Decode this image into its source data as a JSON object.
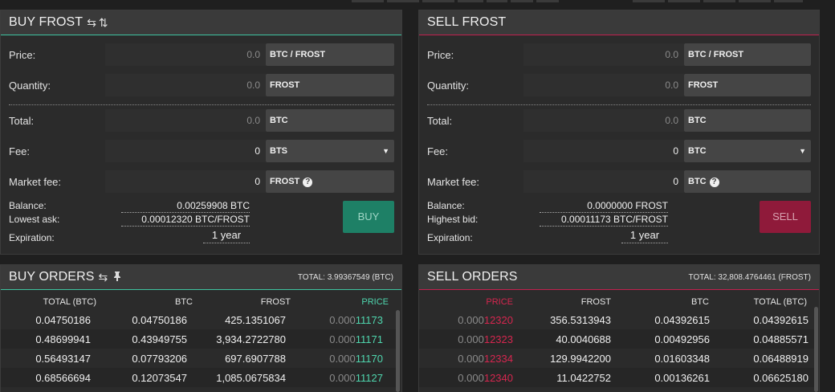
{
  "buy_panel": {
    "title": "BUY FROST",
    "swap_icon": "swap-arrows-icon",
    "sort_icon": "up-down-arrows-icon",
    "price_label": "Price:",
    "price_value": "0.0",
    "price_unit": "BTC / FROST",
    "quantity_label": "Quantity:",
    "quantity_value": "0.0",
    "quantity_unit": "FROST",
    "total_label": "Total:",
    "total_value": "0.0",
    "total_unit": "BTC",
    "fee_label": "Fee:",
    "fee_value": "0",
    "fee_asset": "BTS",
    "market_fee_label": "Market fee:",
    "market_fee_value": "0",
    "market_fee_asset": "FROST",
    "balance_label": "Balance:",
    "balance_value": "0.00259908 BTC",
    "lowest_ask_label": "Lowest ask:",
    "lowest_ask_value": "0.00012320 BTC/FROST",
    "expiration_label": "Expiration:",
    "expiration_value": "1 year",
    "button_label": "BUY"
  },
  "sell_panel": {
    "title": "SELL FROST",
    "price_label": "Price:",
    "price_value": "0.0",
    "price_unit": "BTC / FROST",
    "quantity_label": "Quantity:",
    "quantity_value": "0.0",
    "quantity_unit": "FROST",
    "total_label": "Total:",
    "total_value": "0.0",
    "total_unit": "BTC",
    "fee_label": "Fee:",
    "fee_value": "0",
    "fee_asset": "BTC",
    "market_fee_label": "Market fee:",
    "market_fee_value": "0",
    "market_fee_asset": "BTC",
    "balance_label": "Balance:",
    "balance_value": "0.0000000 FROST",
    "highest_bid_label": "Highest bid:",
    "highest_bid_value": "0.00011173 BTC/FROST",
    "expiration_label": "Expiration:",
    "expiration_value": "1 year",
    "button_label": "SELL"
  },
  "buy_orders": {
    "title": "BUY ORDERS",
    "swap_icon": "swap-arrows-icon",
    "pin_icon": "pin-icon",
    "total": "TOTAL: 3.99367549 (BTC)",
    "columns": [
      "TOTAL (BTC)",
      "BTC",
      "FROST",
      "PRICE"
    ],
    "rows": [
      {
        "total": "0.04750186",
        "btc": "0.04750186",
        "frost": "425.1351067",
        "price_prefix": "0.000",
        "price_digits": "11173"
      },
      {
        "total": "0.48699941",
        "btc": "0.43949755",
        "frost": "3,934.2722780",
        "price_prefix": "0.000",
        "price_digits": "11171"
      },
      {
        "total": "0.56493147",
        "btc": "0.07793206",
        "frost": "697.6907788",
        "price_prefix": "0.000",
        "price_digits": "11170"
      },
      {
        "total": "0.68566694",
        "btc": "0.12073547",
        "frost": "1,085.0675834",
        "price_prefix": "0.000",
        "price_digits": "11127"
      }
    ]
  },
  "sell_orders": {
    "title": "SELL ORDERS",
    "total": "TOTAL: 32,808.4764461 (FROST)",
    "columns": [
      "PRICE",
      "FROST",
      "BTC",
      "TOTAL (BTC)"
    ],
    "rows": [
      {
        "price_prefix": "0.000",
        "price_digits": "12320",
        "frost": "356.5313943",
        "btc": "0.04392615",
        "total": "0.04392615"
      },
      {
        "price_prefix": "0.000",
        "price_digits": "12323",
        "frost": "40.0040688",
        "btc": "0.00492956",
        "total": "0.04885571"
      },
      {
        "price_prefix": "0.000",
        "price_digits": "12334",
        "frost": "129.9942200",
        "btc": "0.01603348",
        "total": "0.06488919"
      },
      {
        "price_prefix": "0.000",
        "price_digits": "12340",
        "frost": "11.0422752",
        "btc": "0.00136261",
        "total": "0.06625180"
      }
    ]
  },
  "colors": {
    "buy_accent": "#3fc3a0",
    "sell_accent": "#c2214f",
    "buy_button": "#1e8066",
    "sell_button": "#8f1a3a"
  }
}
